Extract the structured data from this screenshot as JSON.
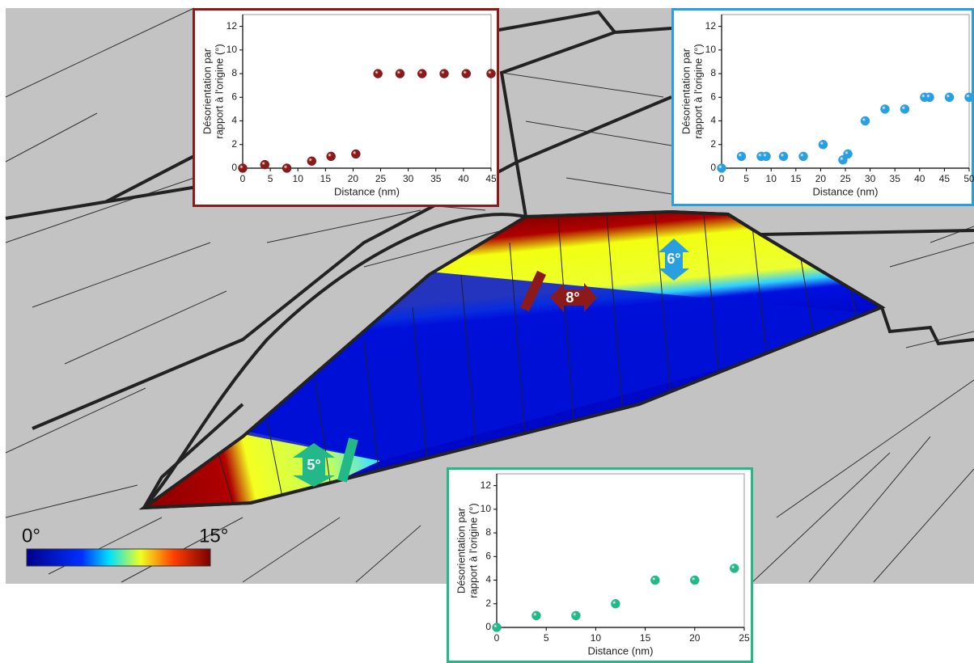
{
  "chart_data": [
    {
      "type": "scatter",
      "xlabel": "Distance (nm)",
      "ylabel": [
        "Désorientation par",
        "rapport à l'origine (°)"
      ],
      "x": [
        0,
        4,
        8,
        12.5,
        16,
        20.5,
        24.5,
        28.5,
        32.5,
        36.5,
        40.5,
        45
      ],
      "values": [
        0,
        0.3,
        0,
        0.6,
        1,
        1.2,
        8,
        8,
        8,
        8,
        8,
        8
      ],
      "color": "#8b1a1a",
      "xlim": [
        0,
        45
      ],
      "xticks": [
        0,
        5,
        10,
        15,
        20,
        25,
        30,
        35,
        40,
        45
      ],
      "ylim": [
        0,
        13
      ],
      "yticks": [
        0,
        2,
        4,
        6,
        8,
        10,
        12
      ]
    },
    {
      "type": "scatter",
      "xlabel": "Distance (nm)",
      "ylabel": [
        "Désorientation par",
        "rapport à l'origine (°)"
      ],
      "x": [
        0,
        4,
        8,
        9,
        12.5,
        16.5,
        20.5,
        24.5,
        25.5,
        29,
        33,
        37,
        41,
        42,
        46,
        50
      ],
      "values": [
        0,
        1,
        1,
        1,
        1,
        1,
        2,
        0.7,
        1.2,
        4,
        5,
        5,
        6,
        6,
        6,
        6
      ],
      "color": "#2a9fe0",
      "xlim": [
        0,
        50
      ],
      "xticks": [
        0,
        5,
        10,
        15,
        20,
        25,
        30,
        35,
        40,
        45,
        50
      ],
      "ylim": [
        0,
        13
      ],
      "yticks": [
        0,
        2,
        4,
        6,
        8,
        10,
        12
      ]
    },
    {
      "type": "scatter",
      "xlabel": "Distance (nm)",
      "ylabel": [
        "Désorientation par",
        "rapport à l'origine (°)"
      ],
      "x": [
        0,
        4,
        8,
        12,
        16,
        20,
        24
      ],
      "values": [
        0,
        1,
        1,
        2,
        4,
        4,
        5
      ],
      "color": "#22b887",
      "xlim": [
        0,
        25
      ],
      "xticks": [
        0,
        5,
        10,
        15,
        20,
        25
      ],
      "ylim": [
        0,
        13
      ],
      "yticks": [
        0,
        2,
        4,
        6,
        8,
        10,
        12
      ]
    }
  ],
  "map": {
    "colorbar": {
      "min_label": "0°",
      "max_label": "15°"
    },
    "annotations": [
      "8°",
      "6°",
      "5°"
    ]
  }
}
